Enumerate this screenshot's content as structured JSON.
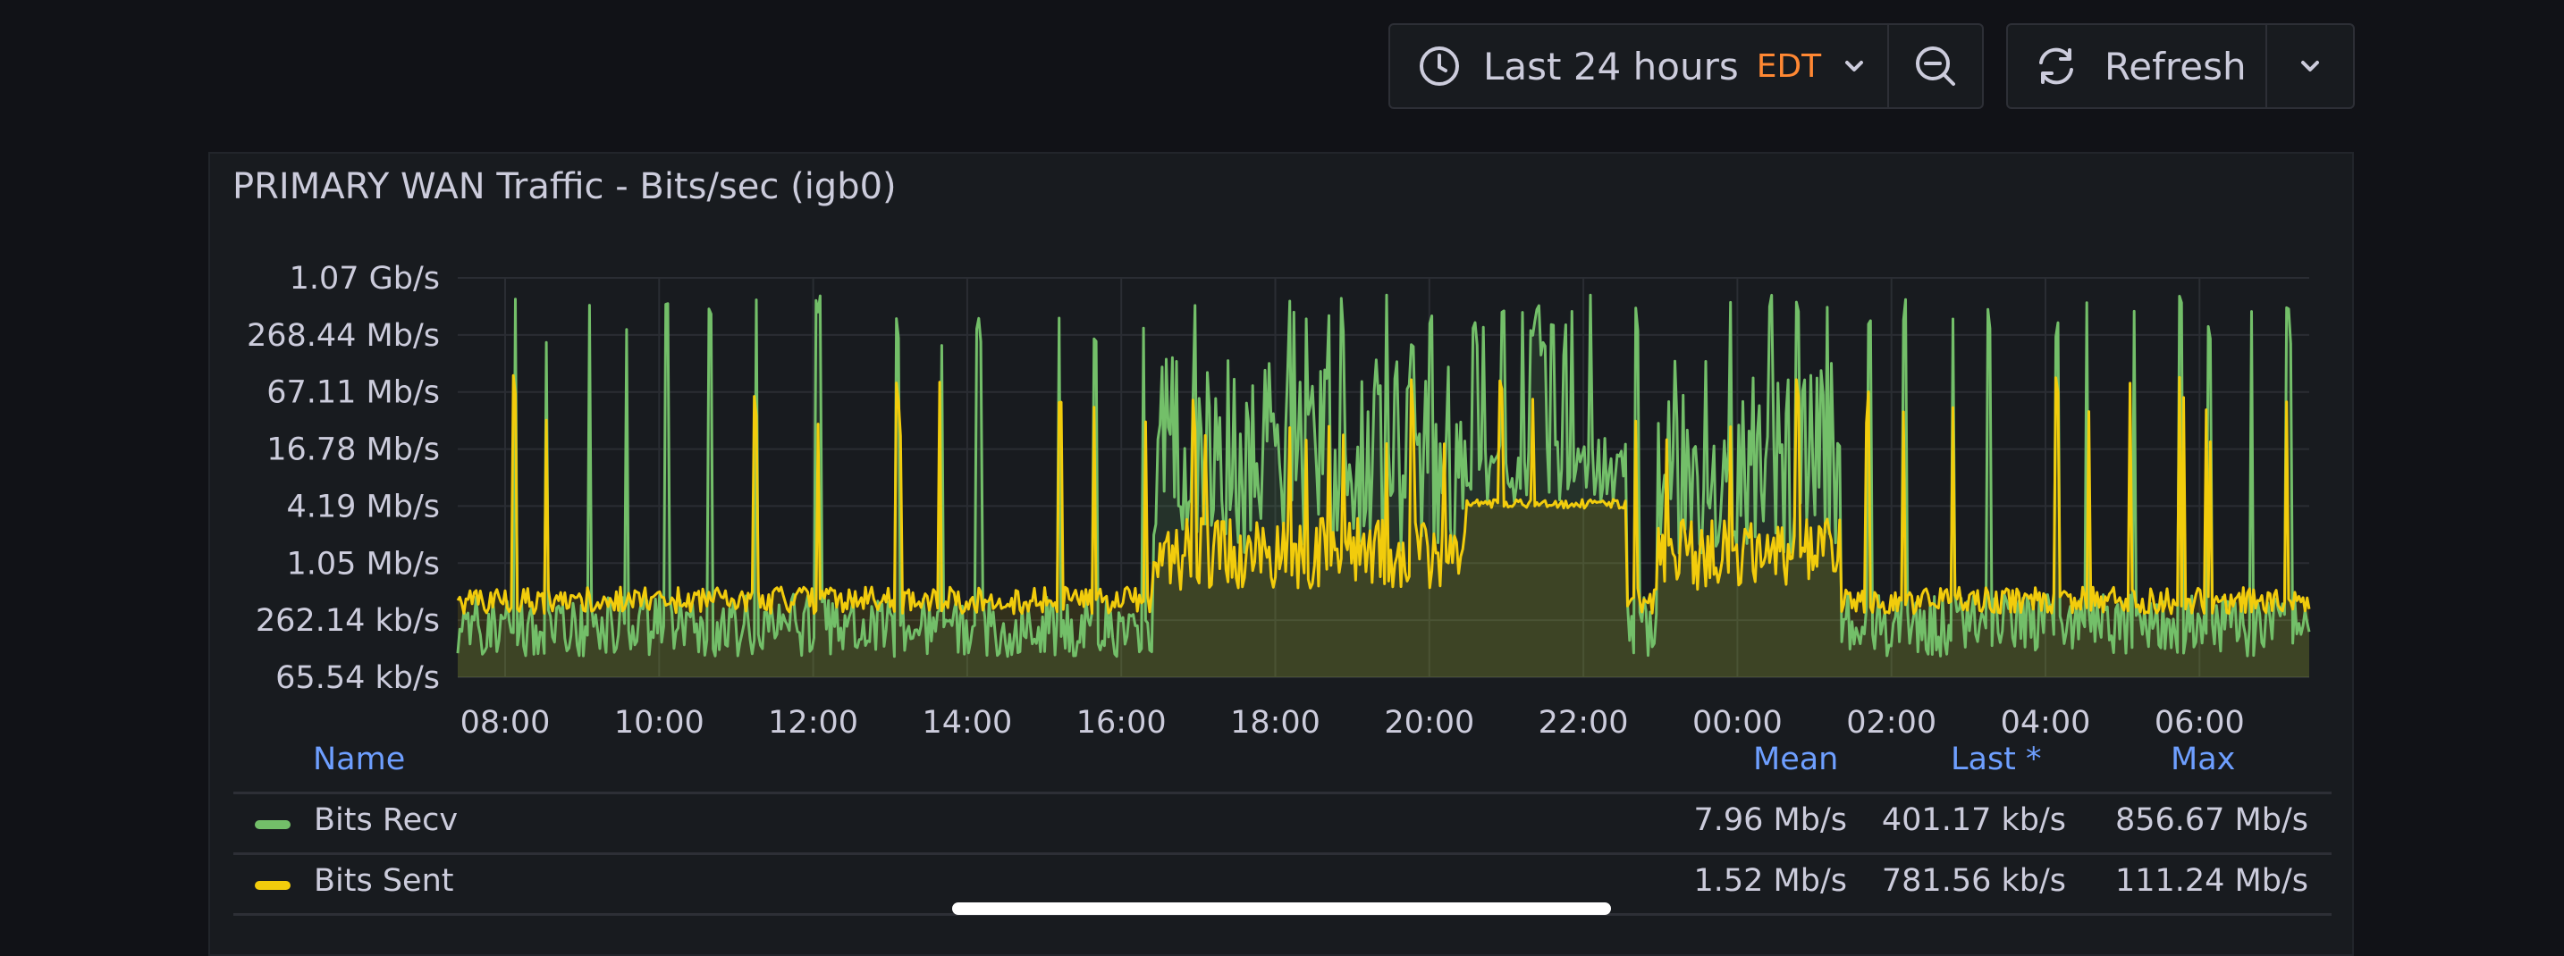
{
  "toolbar": {
    "time_range": "Last 24 hours",
    "timezone": "EDT",
    "refresh_label": "Refresh",
    "icons": [
      "clock-icon",
      "chevron-down-icon",
      "zoom-out-icon",
      "refresh-icon",
      "chevron-down-icon"
    ]
  },
  "panel": {
    "title": "PRIMARY WAN Traffic - Bits/sec (igb0)"
  },
  "chart_data": {
    "type": "area",
    "yscale": "log2",
    "y_ticks": [
      "1.07 Gb/s",
      "268.44 Mb/s",
      "67.11 Mb/s",
      "16.78 Mb/s",
      "4.19 Mb/s",
      "1.05 Mb/s",
      "262.14 kb/s",
      "65.54 kb/s"
    ],
    "x_ticks": [
      "08:00",
      "10:00",
      "12:00",
      "14:00",
      "16:00",
      "18:00",
      "20:00",
      "22:00",
      "00:00",
      "02:00",
      "04:00",
      "06:00"
    ],
    "grid": true,
    "series": [
      {
        "name": "Bits Recv",
        "color": "#73bf69"
      },
      {
        "name": "Bits Sent",
        "color": "#f2cc0c"
      }
    ]
  },
  "legend": {
    "headers": {
      "name": "Name",
      "mean": "Mean",
      "last": "Last *",
      "max": "Max"
    },
    "rows": [
      {
        "name": "Bits Recv",
        "color": "#73bf69",
        "mean": "7.96 Mb/s",
        "last": "401.17 kb/s",
        "max": "856.67 Mb/s"
      },
      {
        "name": "Bits Sent",
        "color": "#f2cc0c",
        "mean": "1.52 Mb/s",
        "last": "781.56 kb/s",
        "max": "111.24 Mb/s"
      }
    ]
  }
}
